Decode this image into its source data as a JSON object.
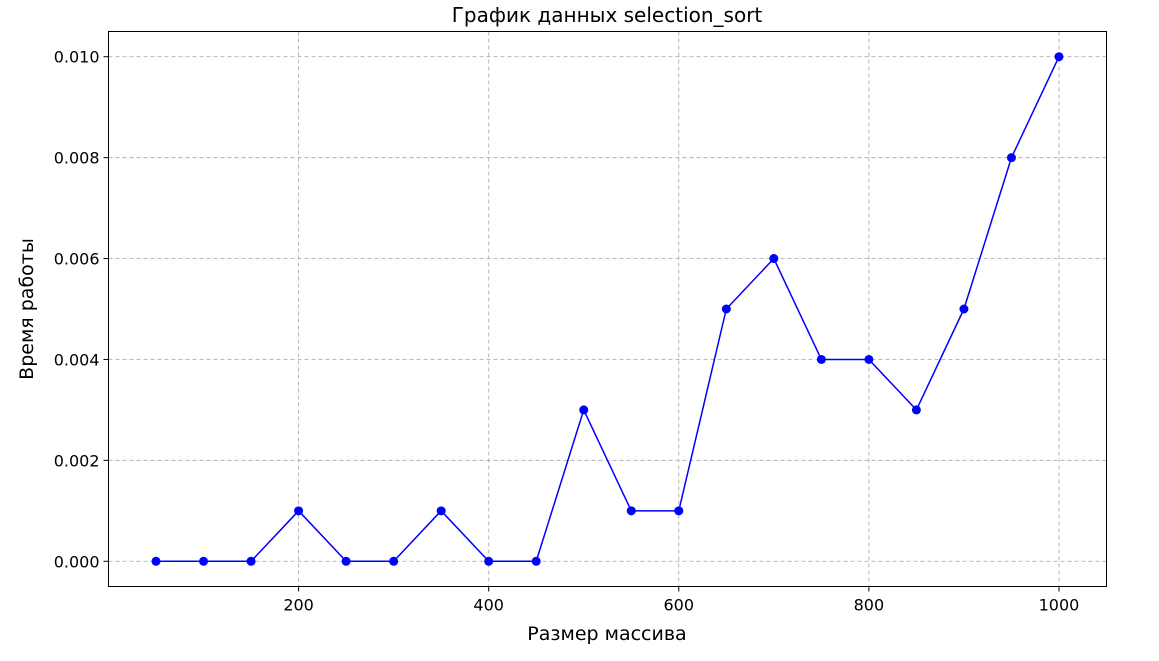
{
  "chart_data": {
    "type": "line",
    "title": "График данных selection_sort",
    "xlabel": "Размер массива",
    "ylabel": "Время работы",
    "xlim": [
      0,
      1050
    ],
    "ylim": [
      -0.0005,
      0.0105
    ],
    "x_ticks": [
      200,
      400,
      600,
      800,
      1000
    ],
    "y_ticks": [
      0.0,
      0.002,
      0.004,
      0.006,
      0.008,
      0.01
    ],
    "x_tick_labels": [
      "200",
      "400",
      "600",
      "800",
      "1000"
    ],
    "y_tick_labels": [
      "0.000",
      "0.002",
      "0.004",
      "0.006",
      "0.008",
      "0.010"
    ],
    "grid": true,
    "series": [
      {
        "x": [
          50,
          100,
          150,
          200,
          250,
          300,
          350,
          400,
          450,
          500,
          550,
          600,
          650,
          700,
          750,
          800,
          850,
          900,
          950,
          1000
        ],
        "values": [
          0.0,
          0.0,
          0.0,
          0.001,
          0.0,
          0.0,
          0.001,
          0.0,
          0.0,
          0.003,
          0.001,
          0.001,
          0.005,
          0.006,
          0.004,
          0.004,
          0.003,
          0.005,
          0.008,
          0.01
        ],
        "color": "#0000ff",
        "marker": "circle"
      }
    ]
  }
}
